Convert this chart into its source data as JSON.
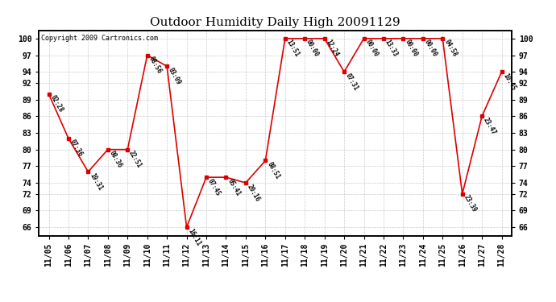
{
  "title": "Outdoor Humidity Daily High 20091129",
  "copyright": "Copyright 2009 Cartronics.com",
  "x_labels": [
    "11/05",
    "11/06",
    "11/07",
    "11/08",
    "11/09",
    "11/10",
    "11/11",
    "11/12",
    "11/13",
    "11/14",
    "11/15",
    "11/16",
    "11/17",
    "11/18",
    "11/19",
    "11/20",
    "11/21",
    "11/22",
    "11/23",
    "11/24",
    "11/25",
    "11/26",
    "11/27",
    "11/28"
  ],
  "y_values": [
    90,
    82,
    76,
    80,
    80,
    97,
    95,
    66,
    75,
    75,
    74,
    78,
    100,
    100,
    100,
    94,
    100,
    100,
    100,
    100,
    100,
    72,
    86,
    94
  ],
  "point_labels": [
    "02:28",
    "07:36",
    "19:31",
    "08:36",
    "22:51",
    "08:56",
    "03:09",
    "16:11",
    "07:45",
    "05:41",
    "20:16",
    "08:51",
    "13:51",
    "00:00",
    "12:24",
    "07:31",
    "00:00",
    "13:33",
    "00:00",
    "00:00",
    "04:58",
    "23:39",
    "23:47",
    "10:45"
  ],
  "y_ticks": [
    66,
    69,
    72,
    74,
    77,
    80,
    83,
    86,
    89,
    92,
    94,
    97,
    100
  ],
  "ylim": [
    64.5,
    101.5
  ],
  "line_color": "#dd0000",
  "marker_color": "#dd0000",
  "bg_color": "#ffffff",
  "grid_color": "#cccccc",
  "title_fontsize": 11,
  "label_fontsize": 5.5,
  "tick_fontsize": 7,
  "copyright_fontsize": 6
}
